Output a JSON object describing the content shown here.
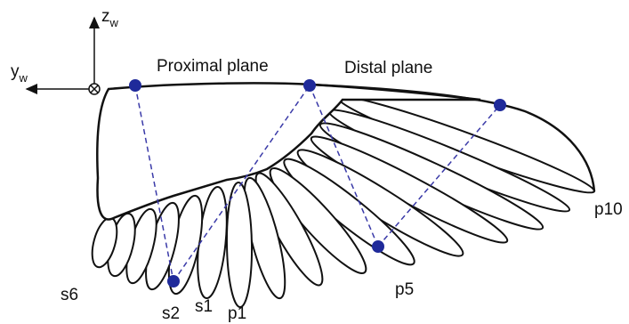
{
  "axes": {
    "z": {
      "base": "z",
      "sub": "w"
    },
    "y": {
      "base": "y",
      "sub": "w"
    }
  },
  "planes": {
    "proximal": "Proximal plane",
    "distal": "Distal plane"
  },
  "feathers": {
    "s6": "s6",
    "s2": "s2",
    "s1": "s1",
    "p1": "p1",
    "p5": "p5",
    "p10": "p10"
  }
}
